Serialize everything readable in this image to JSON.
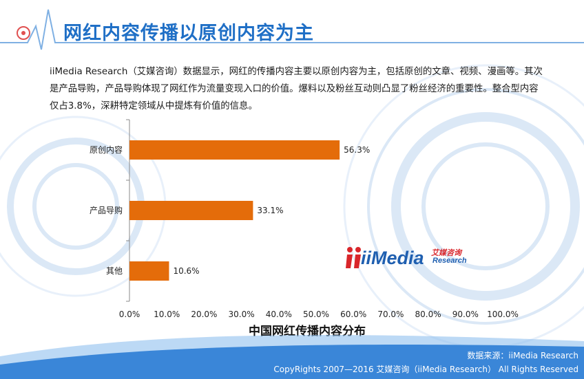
{
  "header": {
    "title": "网红内容传播以原创内容为主"
  },
  "intro_text": "iiMedia Research（艾媒咨询）数据显示，网红的传播内容主要以原创内容为主，包括原创的文章、视频、漫画等。其次是产品导购，产品导购体现了网红作为流量变现入口的价值。爆料以及粉丝互动则凸显了粉丝经济的重要性。整合型内容仅占3.8%，深耕特定领域从中提炼有价值的信息。",
  "logo": {
    "brand": "iiMedia",
    "cn": "艾媒咨询",
    "en": "Research"
  },
  "footer": {
    "source": "数据来源：iiMedia Research",
    "copyright": "CopyRights 2007—2016 艾媒咨询（iiMedia Research） All Rights Reserved"
  },
  "colors": {
    "title": "#1f6fc6",
    "bar": "#e46c0a",
    "footer": "#3a86d8"
  },
  "chart_data": {
    "type": "bar",
    "orientation": "horizontal",
    "title": "中国网红传播内容分布",
    "categories": [
      "原创内容",
      "产品导购",
      "其他"
    ],
    "values": [
      56.3,
      33.1,
      10.6
    ],
    "value_labels": [
      "56.3%",
      "33.1%",
      "10.6%"
    ],
    "xlim": [
      0,
      100
    ],
    "xticks": [
      "0.0%",
      "10.0%",
      "20.0%",
      "30.0%",
      "40.0%",
      "50.0%",
      "60.0%",
      "70.0%",
      "80.0%",
      "90.0%",
      "100.0%"
    ],
    "grid": false,
    "legend": "none"
  }
}
